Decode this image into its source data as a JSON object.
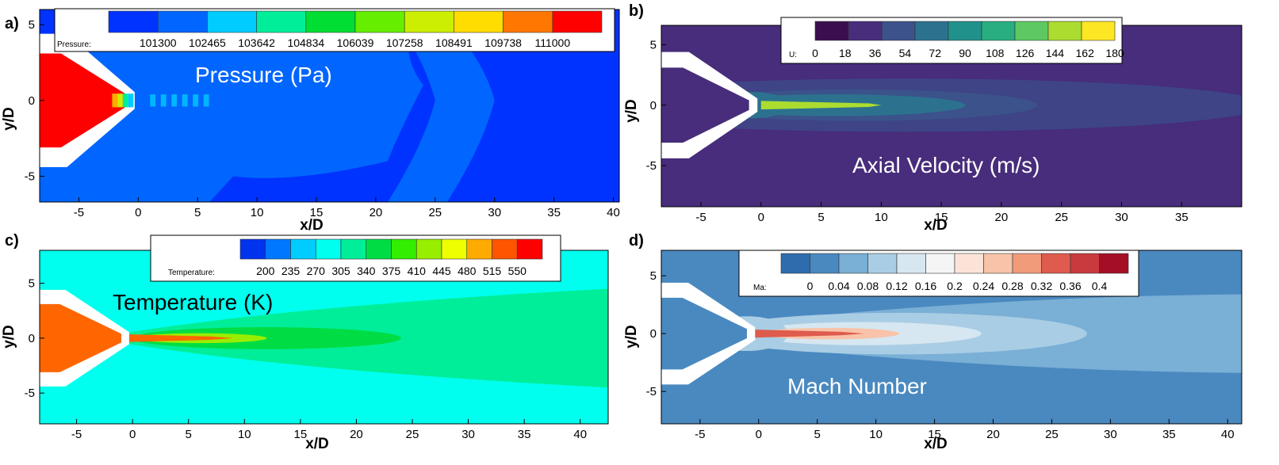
{
  "chart_data": [
    {
      "type": "heatmap",
      "panel": "a)",
      "overlay_title": "Pressure (Pa)",
      "xlabel": "x/D",
      "ylabel": "y/D",
      "xticks": [
        -5,
        0,
        5,
        10,
        15,
        20,
        25,
        30,
        35,
        40
      ],
      "yticks": [
        5,
        0,
        -5
      ],
      "xlim": [
        -8.3,
        40.5
      ],
      "ylim": [
        -6.7,
        6.0
      ],
      "legend": {
        "variable": "Pressure:",
        "levels": [
          "101300",
          "102465",
          "103642",
          "104834",
          "106039",
          "107258",
          "108491",
          "109738",
          "111000"
        ],
        "colors": [
          "#0033ff",
          "#0066ff",
          "#00ccff",
          "#00ee99",
          "#00dd33",
          "#66ee00",
          "#ccee00",
          "#ffdd00",
          "#ff7700",
          "#ff0000"
        ]
      },
      "colors": {
        "background": "#0033ff",
        "secondary": "#0066ff",
        "core": "#ff0000",
        "nozzle": "#ffffff"
      }
    },
    {
      "type": "heatmap",
      "panel": "b)",
      "overlay_title": "Axial Velocity (m/s)",
      "xlabel": "x/D",
      "ylabel": "y/D",
      "xticks": [
        -5,
        0,
        5,
        10,
        15,
        20,
        25,
        30,
        35
      ],
      "yticks": [
        5,
        0,
        -5
      ],
      "xlim": [
        -8.3,
        40.0
      ],
      "ylim": [
        -8.4,
        6.6
      ],
      "legend": {
        "variable": "U:",
        "levels": [
          "0",
          "18",
          "36",
          "54",
          "72",
          "90",
          "108",
          "126",
          "144",
          "162",
          "180"
        ],
        "colors": [
          "#3b0f4f",
          "#472d7b",
          "#3b528b",
          "#2c728e",
          "#21918c",
          "#28ae80",
          "#5ec962",
          "#addc30",
          "#fde725"
        ]
      },
      "colors": {
        "background": "#472d7b",
        "plume_outer": "#3b528b",
        "core": "#addc30",
        "nozzle": "#ffffff"
      }
    },
    {
      "type": "heatmap",
      "panel": "c)",
      "overlay_title": "Temperature (K)",
      "xlabel": "x/D",
      "ylabel": "y/D",
      "xticks": [
        -5,
        0,
        5,
        10,
        15,
        20,
        25,
        30,
        35,
        40
      ],
      "yticks": [
        5,
        0,
        -5
      ],
      "xlim": [
        -8.3,
        42.5
      ],
      "ylim": [
        -7.8,
        8.0
      ],
      "legend": {
        "variable": "Temperature:",
        "levels": [
          "200",
          "235",
          "270",
          "305",
          "340",
          "375",
          "410",
          "445",
          "480",
          "515",
          "550"
        ],
        "colors": [
          "#0033ee",
          "#0077ff",
          "#00ccff",
          "#00ffee",
          "#00ee99",
          "#00dd44",
          "#33ee00",
          "#99ee00",
          "#eeff00",
          "#ffaa00",
          "#ff5500",
          "#ff0000"
        ]
      },
      "colors": {
        "background": "#00ffee",
        "plume_outer": "#00ee99",
        "plume_inner": "#00dd44",
        "core": "#ff6600",
        "nozzle": "#ffffff"
      }
    },
    {
      "type": "heatmap",
      "panel": "d)",
      "overlay_title": "Mach Number",
      "xlabel": "x/D",
      "ylabel": "y/D",
      "xticks": [
        -5,
        0,
        5,
        10,
        15,
        20,
        25,
        30,
        35,
        40
      ],
      "yticks": [
        5,
        0,
        -5
      ],
      "xlim": [
        -8.3,
        41.2
      ],
      "ylim": [
        -7.8,
        7.2
      ],
      "legend": {
        "variable": "Ma:",
        "levels": [
          "0",
          "0.04",
          "0.08",
          "0.12",
          "0.16",
          "0.2",
          "0.24",
          "0.28",
          "0.32",
          "0.36",
          "0.4"
        ],
        "colors": [
          "#2f6cae",
          "#4a89c0",
          "#7aafd6",
          "#a9cde4",
          "#d6e7f1",
          "#f5f5f5",
          "#fbe3d7",
          "#f8c3a8",
          "#f19b7b",
          "#de5b4d",
          "#c93a3e",
          "#a50f26"
        ]
      },
      "colors": {
        "background": "#4a89c0",
        "plume_outer": "#7aafd6",
        "core": "#de5b4d",
        "nozzle": "#ffffff"
      }
    }
  ]
}
